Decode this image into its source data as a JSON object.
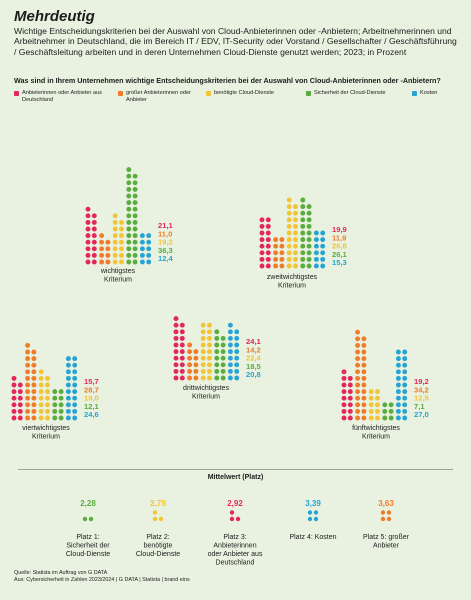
{
  "header": {
    "title": "Mehrdeutig",
    "subtitle": "Wichtige Entscheidungskriterien bei der Auswahl von Cloud-Anbieterinnen oder -Anbietern; Arbeitnehmerinnen und Arbeitnehmer in Deutschland, die im Bereich IT / EDV, IT-Security oder Vorstand / Gesellschafter / Geschäftsführung / Geschäftsleitung arbeiten und in deren Unternehmen Cloud-Dienste genutzt werden; 2023; in Prozent",
    "question": "Was sind in Ihrem Unternehmen wichtige Entscheidungskriterien bei der Auswahl von Cloud-Anbieterinnen oder -Anbietern?"
  },
  "colors": {
    "deutschland": "#e3265b",
    "gross": "#f07c2a",
    "dienste": "#f3c433",
    "sicherheit": "#5aac3f",
    "kosten": "#28a4d4",
    "background": "#e9f2e0"
  },
  "chart_data": {
    "type": "bar",
    "series": [
      {
        "key": "deutschland",
        "name": "Anbieterinnen oder Anbieter aus Deutschland"
      },
      {
        "key": "gross",
        "name": "großer Anbieterinnen oder Anbieter"
      },
      {
        "key": "dienste",
        "name": "benötigte Cloud-Dienste"
      },
      {
        "key": "sicherheit",
        "name": "Sicherheit der Cloud-Dienste"
      },
      {
        "key": "kosten",
        "name": "Kosten"
      }
    ],
    "groups": [
      {
        "label": "wichtigstes Kriterium",
        "values": [
          21.1,
          11.0,
          19.2,
          36.3,
          12.4
        ],
        "labels": [
          "21,1",
          "11,0",
          "19,2",
          "36,3",
          "12,4"
        ]
      },
      {
        "label": "zweitwichtigstes Kriterium",
        "values": [
          19.9,
          11.9,
          26.8,
          26.1,
          15.3
        ],
        "labels": [
          "19,9",
          "11,9",
          "26,8",
          "26,1",
          "15,3"
        ]
      },
      {
        "label": "drittwichtigstes Kriterium",
        "values": [
          24.1,
          14.2,
          22.4,
          18.5,
          20.8
        ],
        "labels": [
          "24,1",
          "14,2",
          "22,4",
          "18,5",
          "20,8"
        ]
      },
      {
        "label": "viertwichtigstes Kriterium",
        "values": [
          15.7,
          28.7,
          19.0,
          12.1,
          24.6
        ],
        "labels": [
          "15,7",
          "28,7",
          "19,0",
          "12,1",
          "24,6"
        ]
      },
      {
        "label": "fünftwichtigstes Kriterium",
        "values": [
          19.2,
          34.2,
          12.5,
          7.1,
          27.0
        ],
        "labels": [
          "19,2",
          "34,2",
          "12,5",
          "7,1",
          "27,0"
        ]
      }
    ]
  },
  "mittelwert": {
    "title": "Mittelwert (Platz)",
    "items": [
      {
        "key": "sicherheit",
        "value": 2.28,
        "value_label": "2,28",
        "label": "Platz 1: Sicherheit der Cloud-Dienste"
      },
      {
        "key": "dienste",
        "value": 2.79,
        "value_label": "2,79",
        "label": "Platz 2: benötigte Cloud-Dienste"
      },
      {
        "key": "deutschland",
        "value": 2.92,
        "value_label": "2,92",
        "label": "Platz 3: Anbieterinnen oder Anbieter aus Deutschland"
      },
      {
        "key": "kosten",
        "value": 3.39,
        "value_label": "3,39",
        "label": "Platz 4: Kosten"
      },
      {
        "key": "gross",
        "value": 3.63,
        "value_label": "3,63",
        "label": "Platz 5: großer Anbieter"
      }
    ]
  },
  "footer": {
    "source": "Quelle: Statista im Auftrag von G DATA",
    "credit": "Aus: Cybersicherheit in Zahlen 2023/2024 | G DATA | Statista | brand eins"
  }
}
